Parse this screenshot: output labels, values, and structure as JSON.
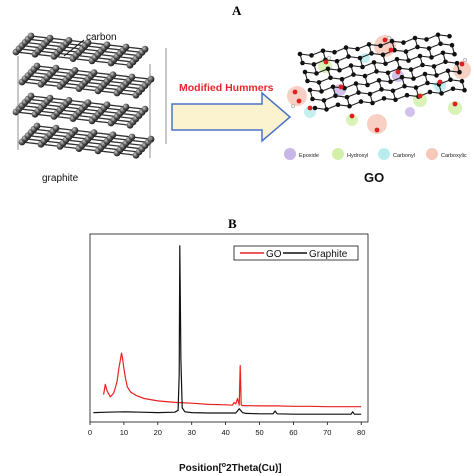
{
  "panel_a": {
    "letter": "A",
    "carbon_label": "carbon",
    "graphite_label": "graphite",
    "arrow_label": "Modified Hummers",
    "go_label": "GO",
    "legend": [
      {
        "label": "Epoxide",
        "color": "#c9b6e8"
      },
      {
        "label": "Hydroxyl",
        "color": "#d2f0a8"
      },
      {
        "label": "Carbonyl",
        "color": "#b9ecec"
      },
      {
        "label": "Carboxylic",
        "color": "#f6c8b8"
      }
    ],
    "colors": {
      "arrow_fill": "#fbf3cf",
      "arrow_stroke": "#4a73c6",
      "arrow_text": "#e8262b"
    }
  },
  "panel_b": {
    "letter": "B",
    "chart_data": {
      "type": "line",
      "xlabel_prefix": "Position[",
      "xlabel_sup": "o",
      "xlabel_suffix": "2Theta(Cu)]",
      "ylabel": "",
      "xlim": [
        0,
        82
      ],
      "xticks": [
        0,
        10,
        20,
        30,
        40,
        50,
        60,
        70,
        80
      ],
      "legend_position": "top-right",
      "series": [
        {
          "name": "GO",
          "color": "#e82020",
          "x": [
            4,
            4.5,
            5,
            6,
            7,
            7.5,
            8,
            8.5,
            9,
            9.3,
            9.6,
            10,
            10.5,
            11,
            12,
            14,
            16,
            20,
            25,
            30,
            35,
            40,
            42,
            42.5,
            43,
            43.5,
            44,
            44.3,
            44.6,
            45,
            46,
            50,
            55,
            60,
            65,
            70,
            75,
            80
          ],
          "y": [
            35,
            48,
            40,
            32,
            37,
            44,
            52,
            68,
            80,
            88,
            82,
            68,
            55,
            45,
            38,
            33,
            30,
            27,
            25,
            24,
            22.5,
            22,
            21.5,
            25,
            23,
            30,
            21.5,
            72,
            22,
            21,
            21,
            20.5,
            20.5,
            20,
            20,
            19.5,
            19.5,
            19.5
          ]
        },
        {
          "name": "Graphite",
          "color": "#111111",
          "x": [
            1,
            5,
            10,
            15,
            20,
            25,
            26,
            26.3,
            26.5,
            26.8,
            27.2,
            28,
            30,
            35,
            40,
            43,
            44,
            45,
            46,
            50,
            54,
            54.6,
            55.2,
            60,
            65,
            70,
            75,
            77,
            77.5,
            78,
            80
          ],
          "y": [
            12,
            12.5,
            13,
            12.5,
            12,
            12.5,
            15,
            60,
            225,
            80,
            18,
            13,
            12,
            11.5,
            11.5,
            11.5,
            17,
            12,
            11,
            10.5,
            10.5,
            14,
            10.5,
            10,
            10,
            10,
            10,
            10,
            13,
            10,
            10
          ]
        }
      ]
    }
  }
}
